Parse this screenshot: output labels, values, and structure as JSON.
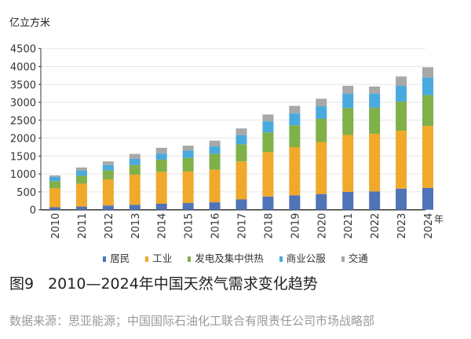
{
  "chart_data": {
    "type": "bar",
    "stacked": true,
    "title": "图9　2010—2024年中国天然气需求变化趋势",
    "figure_number": "图9",
    "title_text": "2010—2024年中国天然气需求变化趋势",
    "ylabel": "亿立方米",
    "xlabel": "年",
    "ylim": [
      0,
      4500
    ],
    "yticks": [
      0,
      500,
      1000,
      1500,
      2000,
      2500,
      3000,
      3500,
      4000,
      4500
    ],
    "grid": true,
    "legend_position": "bottom",
    "categories": [
      "2010",
      "2011",
      "2012",
      "2013",
      "2014",
      "2015",
      "2016",
      "2017",
      "2018",
      "2019",
      "2020",
      "2021",
      "2022",
      "2023",
      "2024"
    ],
    "series": [
      {
        "name": "居民",
        "color": "#4f74b8",
        "values": [
          70,
          90,
          120,
          140,
          170,
          190,
          210,
          290,
          370,
          400,
          440,
          500,
          510,
          590,
          610
        ]
      },
      {
        "name": "工业",
        "color": "#f0a92b",
        "values": [
          530,
          640,
          730,
          840,
          890,
          880,
          910,
          1060,
          1240,
          1350,
          1450,
          1590,
          1610,
          1620,
          1730
        ]
      },
      {
        "name": "发电及集中供热",
        "color": "#7fb04a",
        "values": [
          200,
          220,
          250,
          270,
          340,
          380,
          440,
          480,
          550,
          610,
          650,
          750,
          730,
          810,
          860
        ]
      },
      {
        "name": "商业公服",
        "color": "#4aa9dd",
        "values": [
          120,
          140,
          150,
          170,
          170,
          200,
          210,
          255,
          310,
          330,
          350,
          400,
          390,
          440,
          490
        ]
      },
      {
        "name": "交通",
        "color": "#a8a8a8",
        "values": [
          40,
          90,
          100,
          140,
          160,
          140,
          160,
          185,
          190,
          210,
          210,
          220,
          200,
          260,
          290
        ]
      }
    ]
  },
  "source": "数据来源：思亚能源；中国国际石油化工联合有限责任公司市场战略部"
}
